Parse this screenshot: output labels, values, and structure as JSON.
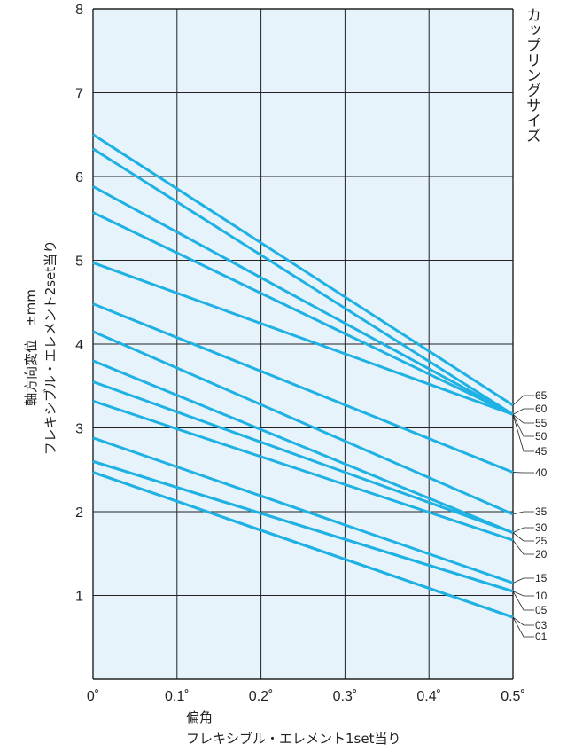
{
  "chart_data": {
    "type": "line",
    "title": "",
    "xlabel": "偏角",
    "xlabel_sub": "フレキシブル・エレメント1set当り",
    "ylabel": "軸方向変位　±mm",
    "ylabel_sub": "フレキシブル・エレメント2set当り",
    "legend_title": "カップリングサイズ",
    "x_ticks": [
      "0˚",
      "0.1˚",
      "0.2˚",
      "0.3˚",
      "0.4˚",
      "0.5˚"
    ],
    "y_ticks": [
      "1",
      "2",
      "3",
      "4",
      "5",
      "6",
      "7",
      "8"
    ],
    "xlim": [
      0,
      0.5
    ],
    "ylim": [
      0,
      8
    ],
    "grid": true,
    "colors": {
      "line": "#1fb1e3",
      "plot_bg": "#e6f3fb",
      "grid": "#222222"
    },
    "series": [
      {
        "name": "01",
        "x": [
          0,
          0.5
        ],
        "y": [
          2.47,
          0.74
        ]
      },
      {
        "name": "03",
        "x": [
          0,
          0.5
        ],
        "y": [
          2.47,
          0.74
        ]
      },
      {
        "name": "05",
        "x": [
          0,
          0.5
        ],
        "y": [
          2.6,
          1.05
        ]
      },
      {
        "name": "10",
        "x": [
          0,
          0.5
        ],
        "y": [
          2.6,
          1.05
        ]
      },
      {
        "name": "15",
        "x": [
          0,
          0.5
        ],
        "y": [
          2.88,
          1.15
        ]
      },
      {
        "name": "20",
        "x": [
          0,
          0.5
        ],
        "y": [
          3.32,
          1.66
        ]
      },
      {
        "name": "25",
        "x": [
          0,
          0.5
        ],
        "y": [
          3.55,
          1.75
        ]
      },
      {
        "name": "30",
        "x": [
          0,
          0.5
        ],
        "y": [
          3.8,
          1.75
        ]
      },
      {
        "name": "35",
        "x": [
          0,
          0.5
        ],
        "y": [
          4.15,
          1.97
        ]
      },
      {
        "name": "40",
        "x": [
          0,
          0.5
        ],
        "y": [
          4.48,
          2.47
        ]
      },
      {
        "name": "45",
        "x": [
          0,
          0.5
        ],
        "y": [
          4.97,
          3.16
        ]
      },
      {
        "name": "50",
        "x": [
          0,
          0.5
        ],
        "y": [
          5.57,
          3.16
        ]
      },
      {
        "name": "55",
        "x": [
          0,
          0.5
        ],
        "y": [
          5.88,
          3.16
        ]
      },
      {
        "name": "60",
        "x": [
          0,
          0.5
        ],
        "y": [
          6.33,
          3.16
        ]
      },
      {
        "name": "65",
        "x": [
          0,
          0.5
        ],
        "y": [
          6.5,
          3.27
        ]
      }
    ],
    "size_labels": [
      "65",
      "60",
      "55",
      "50",
      "45",
      "40",
      "35",
      "30",
      "25",
      "20",
      "15",
      "10",
      "05",
      "03",
      "01"
    ]
  }
}
